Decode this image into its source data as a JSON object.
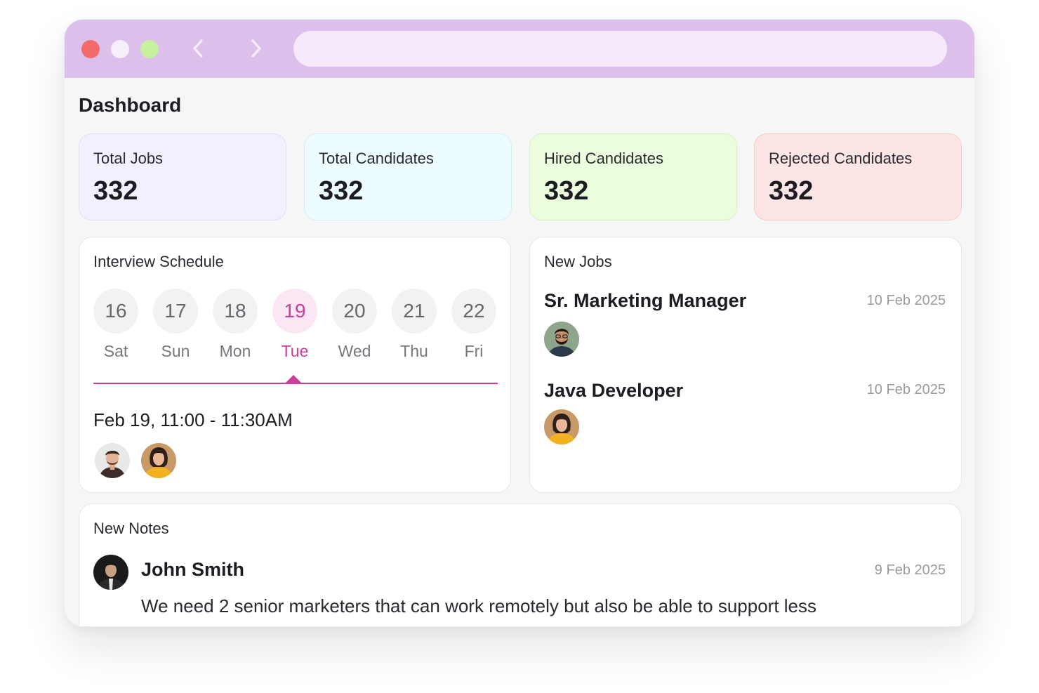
{
  "page": {
    "title": "Dashboard"
  },
  "browser": {
    "controls": [
      "close-dot",
      "minimize-dot",
      "maximize-dot"
    ],
    "back_icon": "chevron-left-icon",
    "forward_icon": "chevron-right-icon",
    "address_value": ""
  },
  "stats": [
    {
      "label": "Total Jobs",
      "value": "332",
      "color": "#f3efff"
    },
    {
      "label": "Total Candidates",
      "value": "332",
      "color": "#edfdff"
    },
    {
      "label": "Hired Candidates",
      "value": "332",
      "color": "#ecfddd"
    },
    {
      "label": "Rejected Candidates",
      "value": "332",
      "color": "#fde5e5"
    }
  ],
  "schedule": {
    "title": "Interview Schedule",
    "days": [
      {
        "num": "16",
        "name": "Sat"
      },
      {
        "num": "17",
        "name": "Sun"
      },
      {
        "num": "18",
        "name": "Mon"
      },
      {
        "num": "19",
        "name": "Tue",
        "selected": true
      },
      {
        "num": "20",
        "name": "Wed"
      },
      {
        "num": "21",
        "name": "Thu"
      },
      {
        "num": "22",
        "name": "Fri"
      }
    ],
    "interview_time": "Feb 19, 11:00 - 11:30AM",
    "accent": "#cc3c98"
  },
  "jobs": {
    "title": "New Jobs",
    "items": [
      {
        "title": "Sr. Marketing Manager",
        "date": "10 Feb 2025"
      },
      {
        "title": "Java Developer",
        "date": "10 Feb 2025"
      }
    ]
  },
  "notes": {
    "title": "New Notes",
    "items": [
      {
        "author": "John Smith",
        "date": "9 Feb 2025",
        "text": "We need 2 senior marketers that can work remotely but also be able to support less"
      }
    ]
  }
}
